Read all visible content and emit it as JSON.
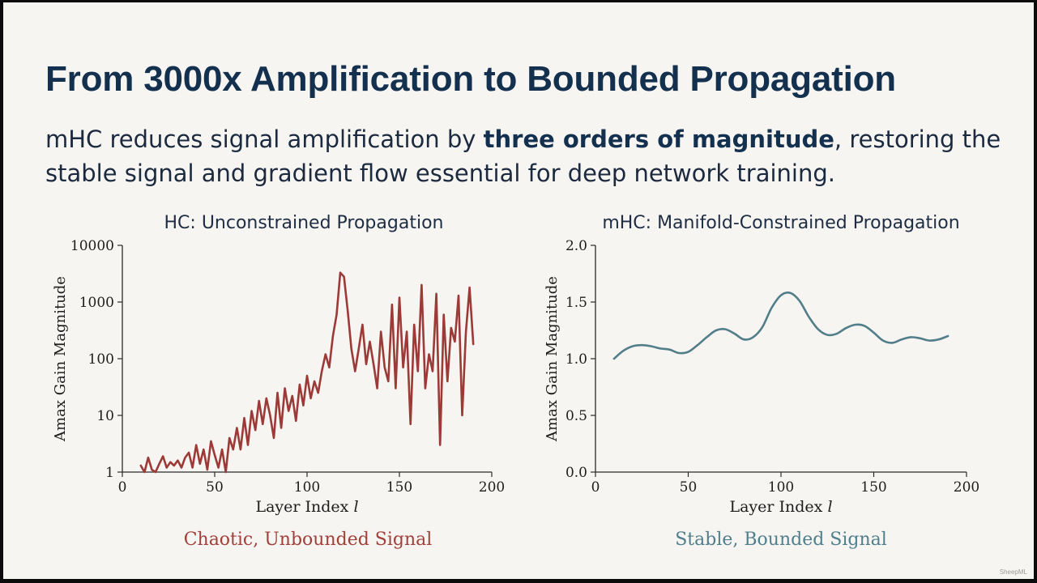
{
  "slide": {
    "title": "From 3000x Amplification to Bounded Propagation",
    "subtitle_before": "mHC reduces signal amplification by ",
    "subtitle_bold": "three orders of magnitude",
    "subtitle_after": ", restoring the stable signal and gradient flow essential for deep network training.",
    "watermark": "SheepML"
  },
  "chart_data": [
    {
      "type": "line",
      "title": "HC: Unconstrained Propagation",
      "caption": "Chaotic, Unbounded Signal",
      "xlabel": "Layer Index ",
      "xlabel_var": "l",
      "ylabel": "Amax Gain Magnitude",
      "xlim": [
        0,
        200
      ],
      "ylim": [
        1,
        10000
      ],
      "yscale": "log",
      "xticks": [
        0,
        50,
        100,
        150,
        200
      ],
      "yticks": [
        1,
        10,
        100,
        1000,
        10000
      ],
      "line_color": "#9b3a37",
      "caption_color": "#a0403a",
      "series": [
        {
          "x": [
            10,
            12,
            14,
            16,
            18,
            20,
            22,
            24,
            26,
            28,
            30,
            32,
            34,
            36,
            38,
            40,
            42,
            44,
            46,
            48,
            50,
            52,
            54,
            56,
            58,
            60,
            62,
            64,
            66,
            68,
            70,
            72,
            74,
            76,
            78,
            80,
            82,
            84,
            86,
            88,
            90,
            92,
            94,
            96,
            98,
            100,
            102,
            104,
            106,
            108,
            110,
            112,
            114,
            116,
            118,
            120,
            122,
            124,
            126,
            128,
            130,
            132,
            134,
            136,
            138,
            140,
            142,
            144,
            146,
            148,
            150,
            152,
            154,
            156,
            158,
            160,
            162,
            164,
            166,
            168,
            170,
            172,
            174,
            176,
            178,
            180,
            182,
            184,
            186,
            188,
            190
          ],
          "y": [
            1.3,
            1,
            1.8,
            1.1,
            1,
            1.4,
            1.9,
            1.2,
            1.5,
            1.3,
            1.6,
            1.2,
            1.8,
            2.2,
            1.2,
            3.0,
            1.4,
            2.5,
            1.1,
            3.5,
            2.0,
            1.2,
            2.5,
            1.0,
            4.0,
            2.5,
            6.0,
            2.5,
            9.0,
            3.0,
            12,
            5.5,
            18,
            7.0,
            20,
            10,
            4,
            25,
            6,
            30,
            12,
            22,
            8,
            35,
            15,
            50,
            20,
            40,
            25,
            60,
            120,
            70,
            250,
            600,
            3300,
            2800,
            700,
            150,
            60,
            150,
            400,
            80,
            200,
            80,
            30,
            300,
            70,
            40,
            900,
            30,
            1200,
            70,
            300,
            7,
            400,
            60,
            2000,
            30,
            120,
            60,
            1400,
            3,
            600,
            40,
            350,
            200,
            1300,
            10,
            300,
            1800,
            180
          ]
        }
      ]
    },
    {
      "type": "line",
      "title": "mHC: Manifold-Constrained Propagation",
      "caption": "Stable, Bounded Signal",
      "xlabel": "Layer Index ",
      "xlabel_var": "l",
      "ylabel": "Amax Gain Magnitude",
      "xlim": [
        0,
        200
      ],
      "ylim": [
        0,
        2.0
      ],
      "yscale": "linear",
      "xticks": [
        0,
        50,
        100,
        150,
        200
      ],
      "yticks": [
        0.0,
        0.5,
        1.0,
        1.5,
        2.0
      ],
      "ytick_labels": [
        "0.0",
        "0.5",
        "1.0",
        "1.5",
        "2.0"
      ],
      "line_color": "#527e8a",
      "caption_color": "#4f7f8c",
      "series": [
        {
          "x": [
            10,
            15,
            20,
            25,
            30,
            35,
            40,
            45,
            50,
            55,
            60,
            65,
            70,
            75,
            80,
            85,
            90,
            95,
            100,
            105,
            110,
            115,
            120,
            125,
            130,
            135,
            140,
            145,
            150,
            155,
            160,
            165,
            170,
            175,
            180,
            185,
            190
          ],
          "y": [
            1.0,
            1.07,
            1.11,
            1.12,
            1.11,
            1.09,
            1.08,
            1.05,
            1.06,
            1.12,
            1.19,
            1.25,
            1.26,
            1.22,
            1.17,
            1.19,
            1.28,
            1.45,
            1.56,
            1.58,
            1.51,
            1.37,
            1.26,
            1.21,
            1.22,
            1.27,
            1.3,
            1.29,
            1.23,
            1.16,
            1.14,
            1.17,
            1.19,
            1.18,
            1.16,
            1.17,
            1.2
          ]
        }
      ]
    }
  ]
}
